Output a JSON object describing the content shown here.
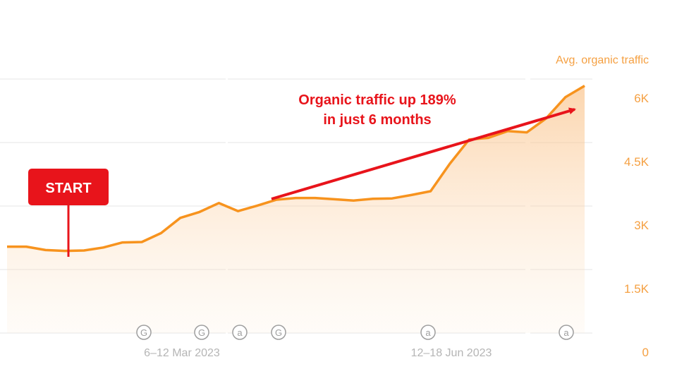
{
  "chart_data": {
    "type": "area",
    "ylabel": "Avg. organic traffic",
    "ylim": [
      0,
      6000
    ],
    "yticks": [
      0,
      1500,
      3000,
      4500,
      6000
    ],
    "ytick_labels": [
      "0",
      "1.5K",
      "3K",
      "4.5K",
      "6K"
    ],
    "xticks": [
      "6–12 Mar 2023",
      "12–18 Jun 2023"
    ],
    "grid": true,
    "color": "#f7931e",
    "series": [
      {
        "values": [
          2040,
          2040,
          1960,
          1940,
          1950,
          2020,
          2140,
          2150,
          2360,
          2720,
          2860,
          3070,
          2880,
          3010,
          3150,
          3190,
          3190,
          3160,
          3130,
          3170,
          3180,
          3260,
          3350,
          4000,
          4570,
          4610,
          4770,
          4740,
          5070,
          5570,
          5840
        ]
      }
    ],
    "event_markers": [
      {
        "label": "G"
      },
      {
        "label": "G"
      },
      {
        "label": "a"
      },
      {
        "label": "G"
      },
      {
        "label": "a"
      },
      {
        "label": "a"
      }
    ],
    "annotations": {
      "growth_line1": "Organic traffic up 189%",
      "growth_line2": "in just 6 months",
      "start_label": "START"
    }
  }
}
